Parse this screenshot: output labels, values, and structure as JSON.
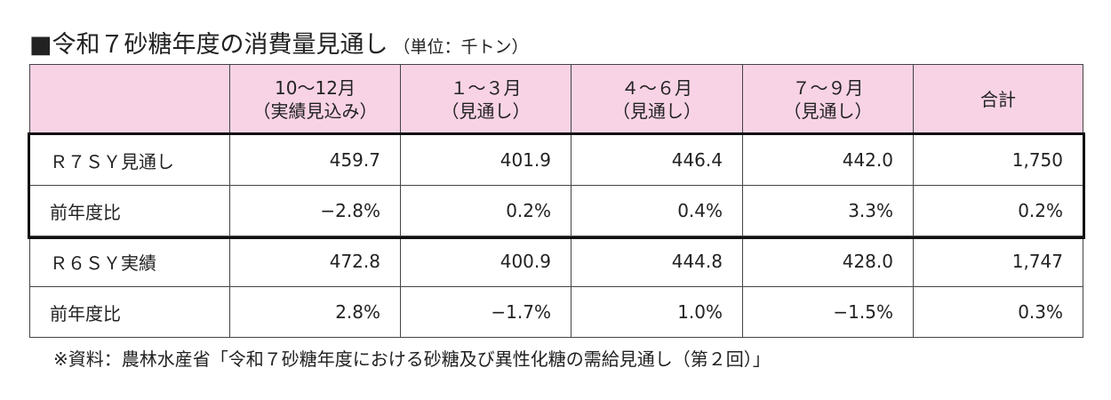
{
  "header": {
    "title": "■令和７砂糖年度の消費量見通し",
    "unit": "（単位：千トン）"
  },
  "table": {
    "columns": [
      [
        "10～12月",
        "（実績見込み）"
      ],
      [
        "１～３月",
        "（見通し）"
      ],
      [
        "４～６月",
        "（見通し）"
      ],
      [
        "７～９月",
        "（見通し）"
      ],
      [
        "合計"
      ]
    ],
    "rows": [
      [
        "Ｒ７ＳＹ見通し",
        "459.7",
        "401.9",
        "446.4",
        "442.0",
        "1,750"
      ],
      [
        "前年度比",
        "−2.8%",
        "0.2%",
        "0.4%",
        "3.3%",
        "0.2%"
      ],
      [
        "Ｒ６ＳＹ実績",
        "472.8",
        "400.9",
        "444.8",
        "428.0",
        "1,747"
      ],
      [
        "前年度比",
        "2.8%",
        "−1.7%",
        "1.0%",
        "−1.5%",
        "0.3%"
      ]
    ]
  },
  "footnote": "※資料：農林水産省「令和７砂糖年度における砂糖及び異性化糖の需給見通し（第２回）」"
}
